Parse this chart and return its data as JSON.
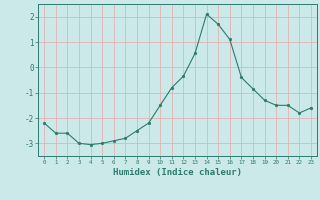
{
  "x": [
    0,
    1,
    2,
    3,
    4,
    5,
    6,
    7,
    8,
    9,
    10,
    11,
    12,
    13,
    14,
    15,
    16,
    17,
    18,
    19,
    20,
    21,
    22,
    23
  ],
  "y": [
    -2.2,
    -2.6,
    -2.6,
    -3.0,
    -3.05,
    -3.0,
    -2.9,
    -2.8,
    -2.5,
    -2.2,
    -1.5,
    -0.8,
    -0.35,
    0.55,
    2.1,
    1.7,
    1.1,
    -0.4,
    -0.85,
    -1.3,
    -1.5,
    -1.5,
    -1.8,
    -1.6
  ],
  "line_color": "#2d7a6e",
  "marker": "o",
  "markersize": 2.0,
  "linewidth": 0.8,
  "xlabel": "Humidex (Indice chaleur)",
  "xlabel_fontsize": 6.5,
  "bg_color": "#cce9e9",
  "grid_color": "#e8a8a8",
  "axis_color": "#2d7a6e",
  "tick_color": "#2d7a6e",
  "ylim": [
    -3.5,
    2.5
  ],
  "xlim": [
    -0.5,
    23.5
  ],
  "yticks": [
    -3,
    -2,
    -1,
    0,
    1,
    2
  ],
  "xticks": [
    0,
    1,
    2,
    3,
    4,
    5,
    6,
    7,
    8,
    9,
    10,
    11,
    12,
    13,
    14,
    15,
    16,
    17,
    18,
    19,
    20,
    21,
    22,
    23
  ],
  "xtick_fontsize": 4.2,
  "ytick_fontsize": 5.5
}
